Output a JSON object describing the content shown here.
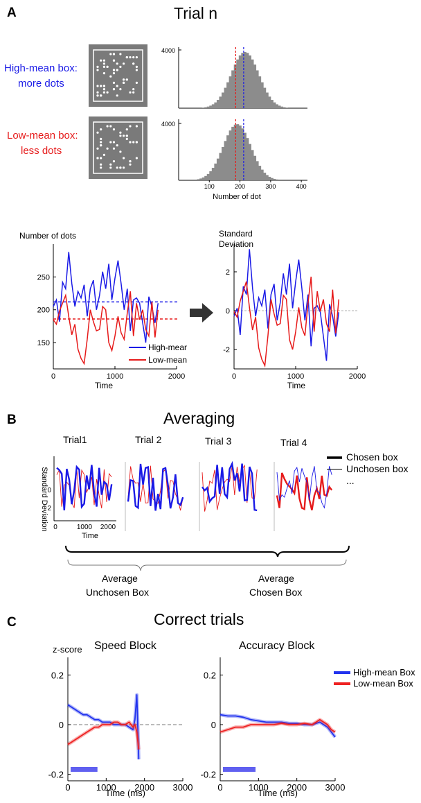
{
  "panel_a": {
    "letter": "A",
    "title": "Trial n",
    "high_label_1": "High-mean box:",
    "high_label_2": "more dots",
    "low_label_1": "Low-mean box:",
    "low_label_2": "less dots",
    "hist_ytick": "4000",
    "hist_xticks": [
      "100",
      "200",
      "300",
      "400"
    ],
    "hist_xlabel": "Number of dot",
    "hist_high_mean": 212,
    "hist_low_mean": 186,
    "hist_high_center": 212,
    "hist_low_center": 186,
    "dots_ylabel": "Number of dots",
    "dots_yticks": [
      "250",
      "200",
      "150"
    ],
    "sd_ylabel_1": "Standard",
    "sd_ylabel_2": "Deviation",
    "sd_yticks": [
      "2",
      "0",
      "-2"
    ],
    "time_xticks": [
      "0",
      "1000",
      "2000"
    ],
    "time_label": "Time",
    "legend_high": "High-mean box",
    "legend_low": "Low-mean box",
    "colors": {
      "high": "#1a1ae6",
      "low": "#e61a1a",
      "hist": "#8c8c8c",
      "arrow": "#333333"
    }
  },
  "panel_b": {
    "letter": "B",
    "title": "Averaging",
    "trials": [
      "Trial1",
      "Trial 2",
      "Trial 3",
      "Trial 4"
    ],
    "ylabel": "Standard Deviation",
    "yticks": [
      "0",
      "2"
    ],
    "xticks": [
      "0",
      "1000",
      "2000"
    ],
    "xlabel": "Time",
    "legend_chosen": "Chosen box",
    "legend_unchosen": "Unchosen box",
    "legend_more": "...",
    "avg_unchosen_1": "Average",
    "avg_unchosen_2": "Unchosen Box",
    "avg_chosen_1": "Average",
    "avg_chosen_2": "Chosen Box"
  },
  "panel_c": {
    "letter": "C",
    "title": "Correct trials",
    "ylabel": "z-score",
    "speed_title": "Speed Block",
    "accuracy_title": "Accuracy Block",
    "yticks": [
      "0.2",
      "0",
      "-0.2"
    ],
    "xticks": [
      "0",
      "1000",
      "2000",
      "3000"
    ],
    "xlabel": "Time (ms)",
    "legend_high": "High-mean Box",
    "legend_low": "Low-mean Box",
    "colors": {
      "high": "#2233ee",
      "low": "#ee2222",
      "bar": "#6060f0"
    }
  },
  "chart_data": [
    {
      "type": "line",
      "title": "Speed Block",
      "xlabel": "Time (ms)",
      "ylabel": "z-score",
      "xlim": [
        0,
        3000
      ],
      "ylim": [
        -0.3,
        0.3
      ],
      "x": [
        0,
        100,
        200,
        300,
        400,
        500,
        600,
        700,
        800,
        900,
        1000,
        1100,
        1200,
        1300,
        1400,
        1500,
        1600,
        1700,
        1750,
        1800,
        1850
      ],
      "series": [
        {
          "name": "High-mean Box",
          "values": [
            0.08,
            0.07,
            0.06,
            0.05,
            0.04,
            0.04,
            0.03,
            0.02,
            0.02,
            0.01,
            0.01,
            0.01,
            0.0,
            0.0,
            0.0,
            0.0,
            -0.01,
            -0.02,
            0.02,
            0.12,
            -0.14
          ]
        },
        {
          "name": "Low-mean Box",
          "values": [
            -0.08,
            -0.07,
            -0.06,
            -0.05,
            -0.04,
            -0.03,
            -0.02,
            -0.01,
            -0.01,
            0.0,
            0.0,
            0.0,
            0.01,
            0.01,
            0.0,
            0.0,
            0.01,
            -0.01,
            0.0,
            -0.03,
            -0.1
          ]
        }
      ],
      "highlight_bar": [
        0,
        700
      ]
    },
    {
      "type": "line",
      "title": "Accuracy Block",
      "xlabel": "Time (ms)",
      "xlim": [
        0,
        3000
      ],
      "ylim": [
        -0.3,
        0.3
      ],
      "x": [
        0,
        200,
        400,
        600,
        800,
        1000,
        1200,
        1400,
        1600,
        1800,
        2000,
        2200,
        2400,
        2600,
        2800,
        2900,
        3000
      ],
      "series": [
        {
          "name": "High-mean Box",
          "values": [
            0.04,
            0.035,
            0.035,
            0.03,
            0.02,
            0.015,
            0.01,
            0.01,
            0.01,
            0.005,
            0.005,
            0.0,
            0.0,
            0.01,
            -0.01,
            -0.03,
            -0.05
          ]
        },
        {
          "name": "Low-mean Box",
          "values": [
            -0.03,
            -0.02,
            -0.01,
            -0.01,
            0.0,
            0.0,
            0.0,
            0.0,
            0.005,
            0.0,
            0.0,
            0.005,
            0.0,
            0.02,
            0.0,
            -0.02,
            -0.03
          ]
        }
      ],
      "highlight_bar": [
        0,
        850
      ]
    },
    {
      "type": "line",
      "title": "",
      "xlabel": "Time",
      "ylabel": "Number of dots",
      "xlim": [
        0,
        2000
      ],
      "ylim": [
        110,
        300
      ],
      "mean_lines": {
        "High-mean box": 212,
        "Low-mean box": 186
      },
      "series": [
        {
          "name": "High-mean box",
          "x": [
            0,
            50,
            100,
            150,
            200,
            250,
            300,
            350,
            400,
            450,
            500,
            550,
            600,
            650,
            700,
            750,
            800,
            850,
            900,
            950,
            1000,
            1050,
            1100,
            1150,
            1200,
            1250,
            1300,
            1350,
            1400,
            1450,
            1500,
            1550,
            1600,
            1650,
            1700
          ],
          "values": [
            205,
            215,
            182,
            242,
            232,
            288,
            240,
            205,
            228,
            218,
            238,
            190,
            232,
            245,
            200,
            222,
            258,
            232,
            270,
            215,
            248,
            275,
            240,
            200,
            232,
            168,
            215,
            218,
            210,
            180,
            150,
            220,
            205,
            180,
            210
          ]
        },
        {
          "name": "Low-mean box",
          "x": [
            0,
            50,
            100,
            150,
            200,
            250,
            300,
            350,
            400,
            450,
            500,
            550,
            600,
            650,
            700,
            750,
            800,
            850,
            900,
            950,
            1000,
            1050,
            1100,
            1150,
            1200,
            1250,
            1300,
            1350,
            1400,
            1450,
            1500,
            1550,
            1600,
            1650,
            1700
          ],
          "values": [
            185,
            178,
            198,
            210,
            222,
            190,
            162,
            178,
            140,
            126,
            118,
            155,
            200,
            182,
            168,
            170,
            205,
            200,
            150,
            138,
            160,
            190,
            165,
            155,
            195,
            228,
            160,
            210,
            185,
            200,
            170,
            160,
            212,
            158,
            200
          ]
        }
      ]
    }
  ]
}
